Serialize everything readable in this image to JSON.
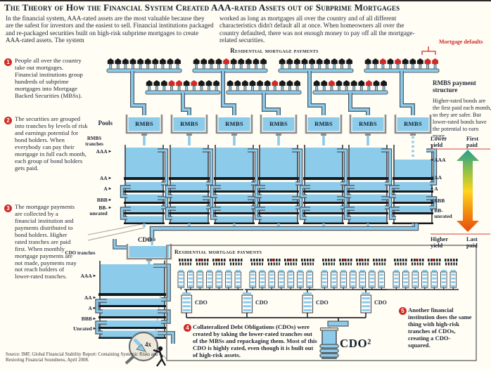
{
  "title": "The Theory of How the Financial System Created AAA-rated Assets out of Subprime Mortgages",
  "intro": {
    "left": "In the financial system, AAA-rated assets are the most valuable because they are the safest for investors and the easiest to sell. Financial institutions packaged and re-packaged securities built on high-risk subprime mortgages to create AAA-rated assets. The system",
    "right": "worked as long as mortgages all over the country and of all different characteristics didn't default all at once.  When homeowners all over the country defaulted, there was not enough money to pay off all the mortgage-related securities."
  },
  "notes": [
    {
      "num": "1",
      "text": "People all over the country take out mortgages. Financial institutions group hundreds of subprime mortgages into Mortgage Backed Securities (MBSs)."
    },
    {
      "num": "2",
      "text": "The securities are grouped into tranches by levels of risk and earnings potential for bond holders. When everybody can pay their mortgage in full each month, each group of bond holders gets paid."
    },
    {
      "num": "3",
      "text": "The mortgage payments are collected by a financial institution and payments distributed to bond holders. Higher rated tranches are paid first. When monthly mortgage payments are not made, payments may not reach holders of lower-rated tranches."
    }
  ],
  "diagram": {
    "residential_label": "Residential mortgage payments",
    "mortgage_defaults_label": "Mortgage defaults",
    "pools_label": "Pools",
    "pool_label": "RMBS",
    "rmbs_tranches_label": "RMBS tranches",
    "rmbs_tranche_labels": [
      "AAA",
      "AA",
      "A",
      "BBB",
      "BB-unrated"
    ],
    "cdo_pool_label": "CDO",
    "cdo_tranches_label": "CDO tranches",
    "cdo_tranche_labels": [
      "AAA",
      "AA",
      "A",
      "BBB",
      "Unrated"
    ],
    "magnifier_label": "4x",
    "mini_box_label": "Residential mortgage payments",
    "mini_cdo_label": "CDO",
    "cdo_squared_label": "CDO²",
    "house_groups_row1": [
      "bbbbbbbbbb",
      "bbbbrbbbbb",
      "bbbbbbbbbb",
      "bbrbrbbbrr"
    ],
    "house_groups_row2": [
      "bbbrrbrbbb",
      "bbbbbbrbbb",
      "bbrbbbbrbb"
    ]
  },
  "rmbs_panel": {
    "heading": "RMBS payment structure",
    "body": "Higher-rated bonds are the first paid each month, so they are safer. But lower-rated bonds have the potential to earn more.",
    "top_left": "Lower yield",
    "top_right": "First paid",
    "bottom_left": "Higher yield",
    "bottom_right": "Last paid",
    "ratings": [
      "AAA",
      "AA",
      "A",
      "BBB",
      "BB-unrated"
    ]
  },
  "points": [
    {
      "num": "4",
      "text": "Collateralized Debt Obligations (CDOs) were created by taking the lower-rated tranches out of the MBSs and repackaging them. Most of this CDO is highly rated, even though it is built out of high-risk assets."
    },
    {
      "num": "5",
      "text": "Another financial institution does the same thing with high-risk tranches of CDOs, creating a CDO-squared."
    }
  ],
  "source": "Source: IMF, Global Financial Stability Report: Containing Systemic Risks and Restoring Financial Soundness, April 2008.",
  "icons": {
    "triangle_right": "▸",
    "triangle_left": "◂"
  },
  "colors": {
    "red": "#cf2a27",
    "water": "#8ccbea",
    "ink": "#1d2637",
    "teal": "#26a08e",
    "yellow": "#ffd41e",
    "orange_red": "#e84a0c"
  }
}
